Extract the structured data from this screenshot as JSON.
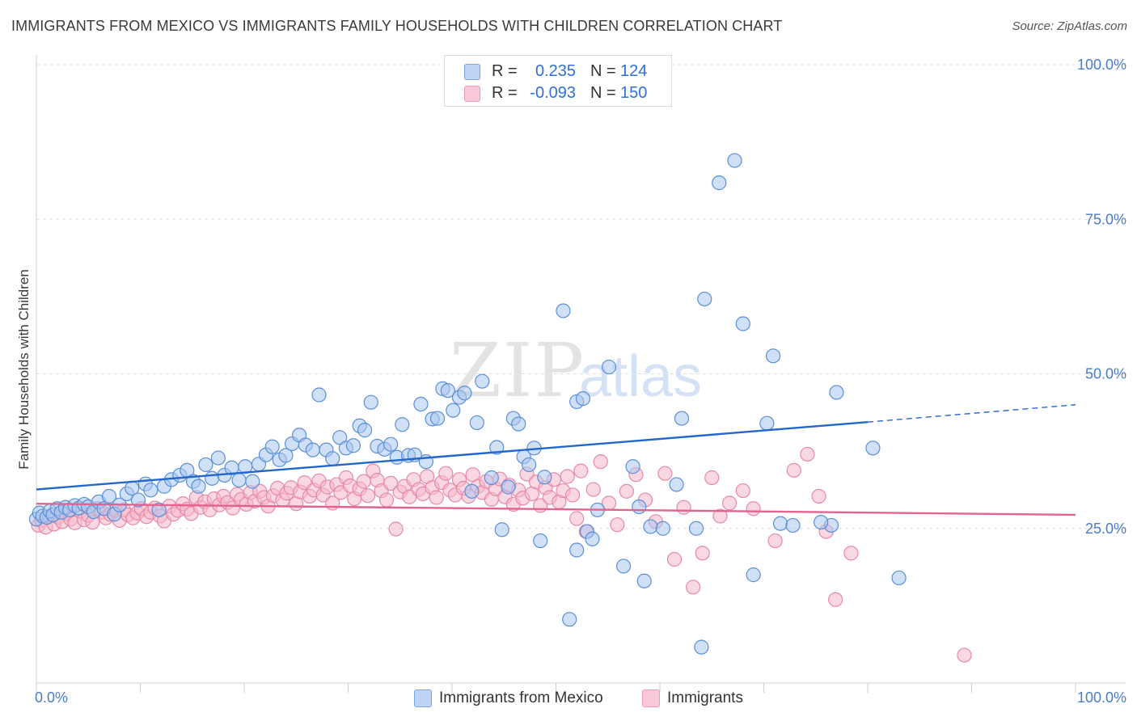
{
  "header": {
    "title": "IMMIGRANTS FROM MEXICO VS IMMIGRANTS FAMILY HOUSEHOLDS WITH CHILDREN CORRELATION CHART",
    "source": "Source: ZipAtlas.com"
  },
  "watermark": {
    "part1": "ZIP",
    "part2": "atlas"
  },
  "legend": {
    "rows": [
      {
        "r_label": "R =",
        "r_value": "0.235",
        "n_label": "N =",
        "n_value": "124",
        "color": "#a9c6f0"
      },
      {
        "r_label": "R =",
        "r_value": "-0.093",
        "n_label": "N =",
        "n_value": "150",
        "color": "#f6b8cb"
      }
    ]
  },
  "bottom_legend": [
    {
      "label": "Immigrants from Mexico",
      "color": "#a9c6f0"
    },
    {
      "label": "Immigrants",
      "color": "#f6b8cb"
    }
  ],
  "colors": {
    "blue_fill": "#a9c6f0",
    "blue_stroke": "#5b8fd6",
    "blue_line": "#2467cc",
    "pink_fill": "#f6b8cb",
    "pink_stroke": "#e58aa6",
    "pink_line": "#e0648f",
    "tick_text": "#4a7cc7",
    "grid": "#dedede"
  },
  "chart_data": {
    "type": "scatter",
    "title": "IMMIGRANTS FROM MEXICO VS IMMIGRANTS FAMILY HOUSEHOLDS WITH CHILDREN CORRELATION CHART",
    "xlabel": "",
    "ylabel": "Family Households with Children",
    "xlim": [
      0,
      100
    ],
    "ylim": [
      0,
      105
    ],
    "x_tick_labels": [
      "0.0%",
      "100.0%"
    ],
    "y_ticks": [
      25,
      50,
      75,
      100
    ],
    "y_tick_labels": [
      "25.0%",
      "50.0%",
      "75.0%",
      "100.0%"
    ],
    "grid": "horizontal dashed",
    "legend_position": "top-center",
    "series": [
      {
        "name": "Immigrants from Mexico",
        "trend": {
          "x0": 0,
          "y0": 31.3,
          "x1": 80,
          "y1": 42.2,
          "dashed_to_x": 100,
          "dashed_to_y": 45.0
        },
        "points": [
          [
            0,
            26.5
          ],
          [
            0.3,
            27.5
          ],
          [
            0.6,
            27.0
          ],
          [
            1.0,
            26.8
          ],
          [
            1.3,
            27.8
          ],
          [
            1.6,
            27.2
          ],
          [
            2.0,
            28.2
          ],
          [
            2.4,
            27.6
          ],
          [
            2.8,
            28.4
          ],
          [
            3.2,
            28.0
          ],
          [
            3.7,
            28.7
          ],
          [
            4.1,
            28.3
          ],
          [
            4.6,
            28.9
          ],
          [
            5.0,
            28.5
          ],
          [
            5.5,
            27.7
          ],
          [
            6.0,
            29.3
          ],
          [
            6.5,
            28.2
          ],
          [
            7.0,
            30.2
          ],
          [
            7.5,
            27.3
          ],
          [
            8.0,
            28.8
          ],
          [
            8.7,
            30.6
          ],
          [
            9.2,
            31.5
          ],
          [
            9.8,
            29.6
          ],
          [
            10.5,
            32.2
          ],
          [
            11.0,
            31.2
          ],
          [
            11.8,
            28.0
          ],
          [
            12.3,
            31.8
          ],
          [
            13.0,
            32.9
          ],
          [
            13.8,
            33.6
          ],
          [
            14.5,
            34.4
          ],
          [
            15.1,
            32.6
          ],
          [
            15.6,
            31.8
          ],
          [
            16.3,
            35.3
          ],
          [
            16.9,
            33.1
          ],
          [
            17.5,
            36.4
          ],
          [
            18.1,
            33.6
          ],
          [
            18.8,
            34.8
          ],
          [
            19.5,
            32.8
          ],
          [
            20.1,
            35.0
          ],
          [
            20.8,
            32.6
          ],
          [
            21.4,
            35.4
          ],
          [
            22.1,
            36.9
          ],
          [
            22.7,
            38.2
          ],
          [
            23.4,
            36.1
          ],
          [
            24.0,
            36.8
          ],
          [
            24.6,
            38.7
          ],
          [
            25.3,
            40.1
          ],
          [
            25.9,
            38.5
          ],
          [
            26.6,
            37.7
          ],
          [
            27.2,
            46.6
          ],
          [
            27.9,
            37.7
          ],
          [
            28.5,
            36.3
          ],
          [
            29.2,
            39.7
          ],
          [
            29.8,
            38.0
          ],
          [
            30.5,
            38.4
          ],
          [
            31.1,
            41.6
          ],
          [
            31.6,
            40.9
          ],
          [
            32.2,
            45.4
          ],
          [
            32.8,
            38.3
          ],
          [
            33.5,
            37.8
          ],
          [
            34.1,
            38.6
          ],
          [
            34.7,
            36.5
          ],
          [
            35.2,
            41.8
          ],
          [
            35.8,
            36.8
          ],
          [
            36.4,
            36.9
          ],
          [
            37.0,
            45.1
          ],
          [
            37.5,
            35.8
          ],
          [
            38.1,
            42.7
          ],
          [
            38.6,
            42.8
          ],
          [
            39.1,
            47.6
          ],
          [
            39.6,
            47.3
          ],
          [
            40.1,
            44.1
          ],
          [
            40.7,
            46.2
          ],
          [
            41.2,
            46.9
          ],
          [
            41.9,
            31.0
          ],
          [
            42.4,
            42.1
          ],
          [
            42.9,
            48.8
          ],
          [
            43.8,
            33.2
          ],
          [
            44.3,
            38.1
          ],
          [
            44.8,
            24.8
          ],
          [
            45.4,
            31.7
          ],
          [
            45.9,
            42.8
          ],
          [
            46.4,
            41.9
          ],
          [
            46.9,
            36.6
          ],
          [
            47.4,
            35.3
          ],
          [
            47.9,
            38.0
          ],
          [
            48.5,
            23.0
          ],
          [
            48.9,
            33.3
          ],
          [
            50.7,
            60.2
          ],
          [
            51.3,
            10.3
          ],
          [
            52.0,
            45.5
          ],
          [
            52.6,
            46.0
          ],
          [
            52.0,
            21.5
          ],
          [
            53.0,
            24.5
          ],
          [
            53.5,
            23.3
          ],
          [
            54.0,
            28.0
          ],
          [
            55.1,
            51.1
          ],
          [
            56.5,
            18.9
          ],
          [
            57.4,
            35.0
          ],
          [
            58.0,
            28.5
          ],
          [
            58.5,
            16.5
          ],
          [
            59.1,
            25.3
          ],
          [
            60.3,
            25.0
          ],
          [
            61.6,
            32.1
          ],
          [
            62.1,
            42.8
          ],
          [
            63.5,
            25.0
          ],
          [
            64.0,
            5.8
          ],
          [
            64.3,
            62.1
          ],
          [
            65.7,
            80.9
          ],
          [
            67.2,
            84.5
          ],
          [
            68.0,
            58.1
          ],
          [
            69.0,
            17.5
          ],
          [
            70.3,
            42.0
          ],
          [
            70.9,
            52.9
          ],
          [
            71.6,
            25.8
          ],
          [
            72.8,
            25.5
          ],
          [
            76.5,
            25.5
          ],
          [
            75.5,
            26.0
          ],
          [
            80.5,
            38.0
          ],
          [
            83.0,
            17.0
          ],
          [
            77.0,
            47.0
          ]
        ]
      },
      {
        "name": "Immigrants",
        "trend": {
          "x0": 0,
          "y0": 29.0,
          "x1": 100,
          "y1": 27.2
        },
        "points": [
          [
            0.2,
            25.5
          ],
          [
            0.5,
            26.3
          ],
          [
            0.9,
            25.2
          ],
          [
            1.3,
            27.0
          ],
          [
            1.7,
            25.7
          ],
          [
            2.1,
            26.8
          ],
          [
            2.5,
            26.1
          ],
          [
            2.9,
            27.4
          ],
          [
            3.3,
            26.5
          ],
          [
            3.7,
            25.9
          ],
          [
            4.2,
            27.8
          ],
          [
            4.6,
            26.4
          ],
          [
            5.0,
            27.1
          ],
          [
            5.4,
            26.0
          ],
          [
            5.9,
            28.2
          ],
          [
            6.3,
            27.6
          ],
          [
            6.7,
            26.7
          ],
          [
            7.1,
            27.3
          ],
          [
            7.6,
            27.9
          ],
          [
            8.0,
            26.3
          ],
          [
            8.4,
            28.0
          ],
          [
            8.8,
            27.2
          ],
          [
            9.3,
            26.7
          ],
          [
            9.7,
            27.5
          ],
          [
            10.1,
            28.2
          ],
          [
            10.6,
            26.9
          ],
          [
            11.0,
            27.6
          ],
          [
            11.4,
            28.3
          ],
          [
            11.9,
            27.0
          ],
          [
            12.3,
            26.2
          ],
          [
            12.8,
            28.6
          ],
          [
            13.2,
            27.3
          ],
          [
            13.6,
            27.9
          ],
          [
            14.1,
            29.0
          ],
          [
            14.5,
            28.1
          ],
          [
            14.9,
            27.4
          ],
          [
            15.4,
            30.0
          ],
          [
            15.8,
            28.4
          ],
          [
            16.2,
            29.3
          ],
          [
            16.7,
            28.0
          ],
          [
            17.1,
            29.8
          ],
          [
            17.6,
            28.8
          ],
          [
            18.0,
            30.2
          ],
          [
            18.4,
            29.2
          ],
          [
            18.9,
            28.3
          ],
          [
            19.3,
            30.5
          ],
          [
            19.7,
            29.7
          ],
          [
            20.2,
            28.9
          ],
          [
            20.6,
            30.8
          ],
          [
            21.0,
            29.4
          ],
          [
            21.5,
            31.0
          ],
          [
            21.9,
            30.0
          ],
          [
            22.3,
            28.6
          ],
          [
            22.8,
            30.3
          ],
          [
            23.2,
            31.5
          ],
          [
            23.7,
            29.6
          ],
          [
            24.1,
            30.7
          ],
          [
            24.5,
            31.6
          ],
          [
            25.0,
            29.0
          ],
          [
            25.4,
            30.9
          ],
          [
            25.8,
            32.4
          ],
          [
            26.3,
            30.2
          ],
          [
            26.7,
            31.2
          ],
          [
            27.2,
            32.7
          ],
          [
            27.6,
            30.4
          ],
          [
            28.0,
            31.7
          ],
          [
            28.5,
            29.1
          ],
          [
            28.9,
            32.1
          ],
          [
            29.3,
            30.8
          ],
          [
            29.8,
            33.2
          ],
          [
            30.2,
            31.9
          ],
          [
            30.6,
            29.8
          ],
          [
            31.1,
            31.4
          ],
          [
            31.5,
            32.6
          ],
          [
            31.9,
            30.3
          ],
          [
            32.4,
            34.3
          ],
          [
            32.8,
            32.8
          ],
          [
            33.2,
            31.1
          ],
          [
            33.7,
            29.6
          ],
          [
            34.1,
            32.3
          ],
          [
            34.6,
            24.9
          ],
          [
            35.0,
            30.9
          ],
          [
            35.4,
            31.8
          ],
          [
            35.9,
            30.1
          ],
          [
            36.3,
            32.9
          ],
          [
            36.8,
            31.3
          ],
          [
            37.2,
            30.6
          ],
          [
            37.6,
            33.4
          ],
          [
            38.1,
            31.6
          ],
          [
            38.5,
            30.0
          ],
          [
            39.0,
            32.4
          ],
          [
            39.4,
            33.9
          ],
          [
            39.8,
            31.2
          ],
          [
            40.3,
            30.4
          ],
          [
            40.7,
            32.9
          ],
          [
            41.1,
            31.5
          ],
          [
            41.6,
            30.2
          ],
          [
            42.0,
            33.7
          ],
          [
            42.5,
            31.8
          ],
          [
            42.9,
            30.8
          ],
          [
            43.3,
            32.6
          ],
          [
            43.8,
            29.7
          ],
          [
            44.2,
            31.4
          ],
          [
            44.6,
            33.0
          ],
          [
            45.1,
            30.1
          ],
          [
            45.5,
            32.0
          ],
          [
            45.9,
            28.9
          ],
          [
            46.4,
            31.2
          ],
          [
            46.8,
            29.9
          ],
          [
            47.2,
            33.8
          ],
          [
            47.7,
            30.6
          ],
          [
            48.1,
            32.5
          ],
          [
            48.5,
            28.7
          ],
          [
            49.0,
            31.6
          ],
          [
            49.4,
            30.0
          ],
          [
            49.8,
            32.9
          ],
          [
            50.3,
            29.3
          ],
          [
            50.7,
            31.1
          ],
          [
            51.1,
            33.4
          ],
          [
            51.6,
            30.4
          ],
          [
            52.0,
            26.6
          ],
          [
            52.4,
            34.3
          ],
          [
            52.9,
            24.5
          ],
          [
            53.6,
            31.3
          ],
          [
            54.3,
            35.8
          ],
          [
            55.1,
            29.1
          ],
          [
            55.9,
            25.6
          ],
          [
            56.8,
            31.0
          ],
          [
            57.7,
            33.7
          ],
          [
            58.6,
            29.6
          ],
          [
            59.6,
            26.1
          ],
          [
            60.5,
            33.9
          ],
          [
            61.4,
            20.0
          ],
          [
            62.3,
            28.4
          ],
          [
            63.2,
            15.5
          ],
          [
            64.1,
            21.0
          ],
          [
            65.0,
            33.2
          ],
          [
            65.8,
            27.0
          ],
          [
            66.7,
            29.1
          ],
          [
            68.0,
            31.1
          ],
          [
            69.0,
            28.2
          ],
          [
            71.1,
            23.0
          ],
          [
            72.9,
            34.4
          ],
          [
            74.2,
            37.0
          ],
          [
            75.3,
            30.2
          ],
          [
            76.0,
            24.5
          ],
          [
            76.9,
            13.5
          ],
          [
            78.4,
            21.0
          ],
          [
            89.3,
            4.5
          ]
        ]
      }
    ]
  }
}
